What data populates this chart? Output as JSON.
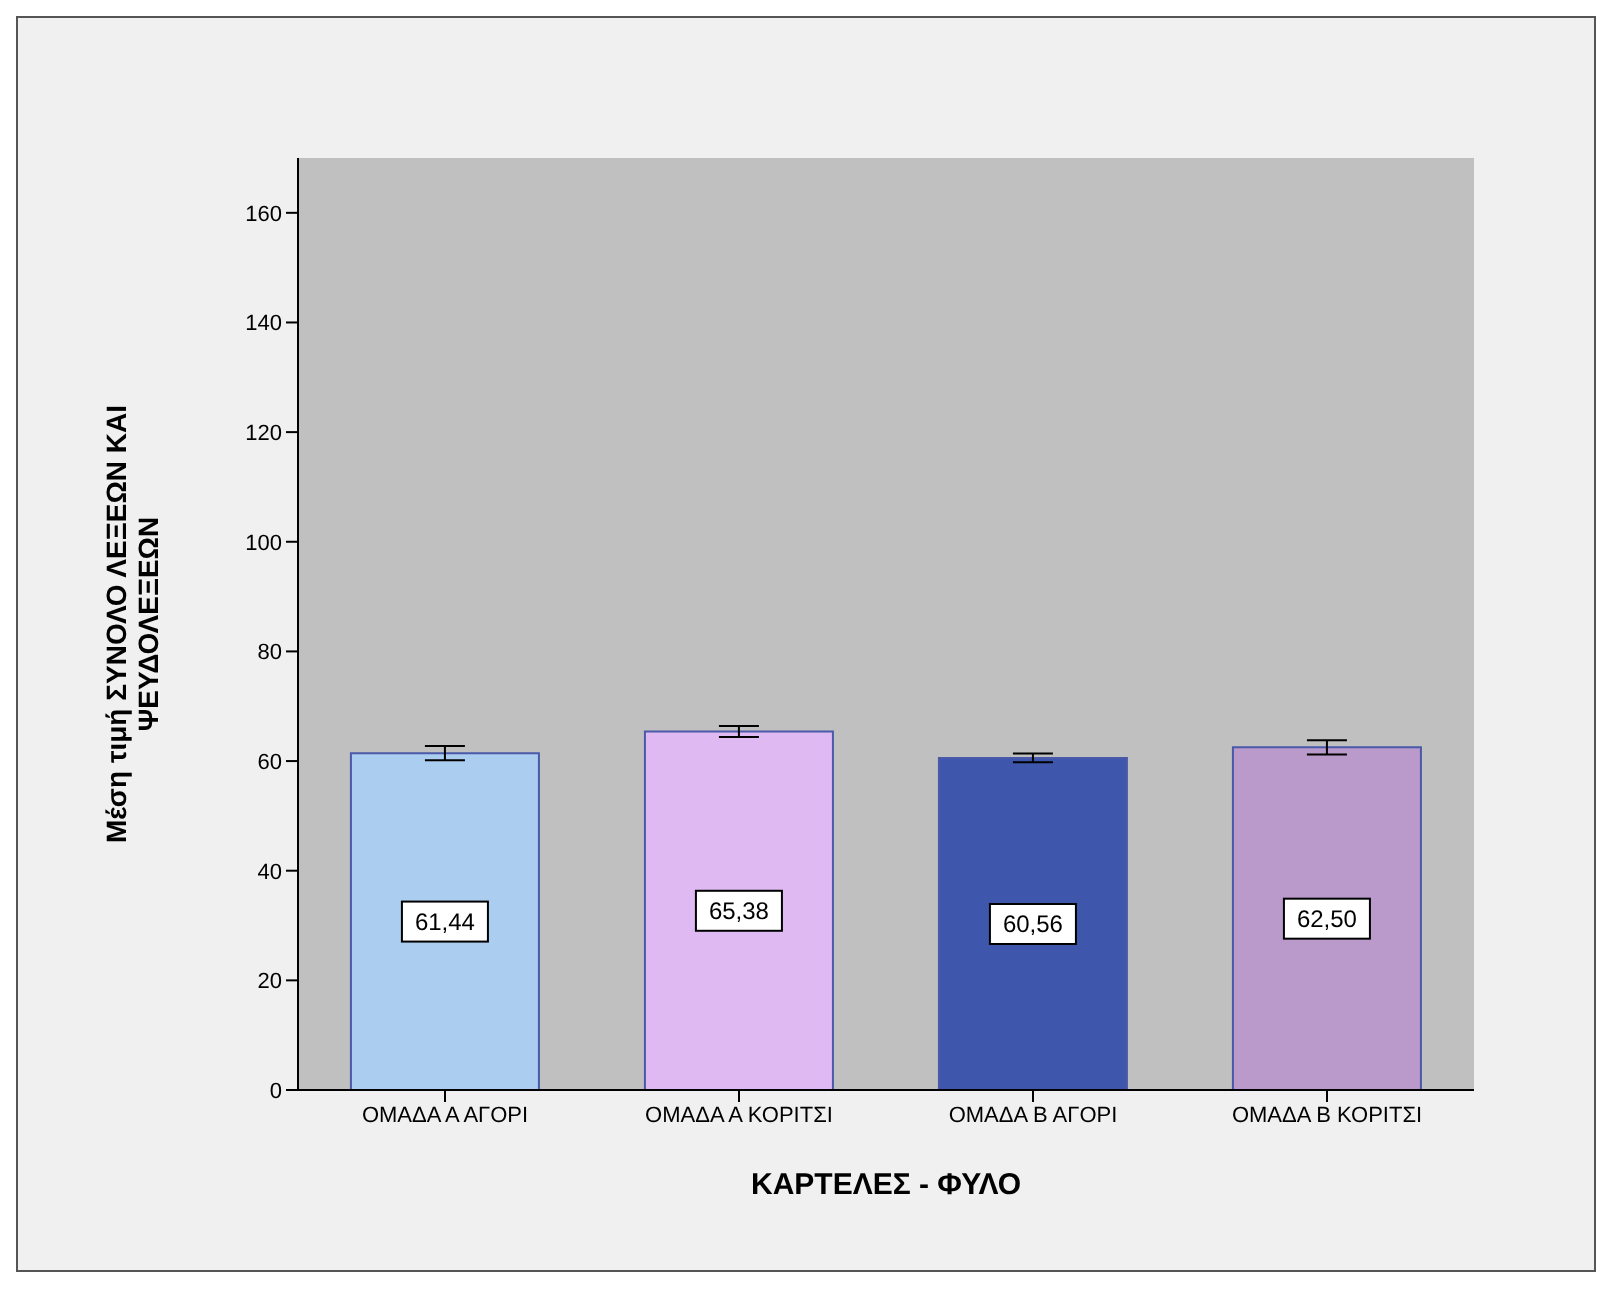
{
  "chart_data": {
    "type": "bar",
    "xlabel": "ΚΑΡΤΕΛΕΣ - ΦΥΛΟ",
    "ylabel": "Μέση τιμή ΣΥΝΟΛΟ ΛΕΞΕΩΝ ΚΑΙ ΨΕΥΔΟΛΕΞΕΩΝ",
    "categories": [
      "ΟΜΑΔΑ Α ΑΓΟΡΙ",
      "ΟΜΑΔΑ Α ΚΟΡΙΤΣΙ",
      "ΟΜΑΔΑ Β ΑΓΟΡΙ",
      "ΟΜΑΔΑ Β ΚΟΡΙΤΣΙ"
    ],
    "values": [
      61.44,
      65.38,
      60.56,
      62.5
    ],
    "colors": [
      "#abcdef",
      "#dfb9f2",
      "#3e57ad",
      "#b99aca"
    ],
    "value_labels": [
      "61,44",
      "65,38",
      "60,56",
      "62,50"
    ],
    "errors": [
      1.3,
      1.0,
      0.8,
      1.3
    ],
    "ylim": [
      0,
      170
    ],
    "yticks": [
      0,
      20,
      40,
      60,
      80,
      100,
      120,
      140,
      160
    ],
    "grid": false
  }
}
